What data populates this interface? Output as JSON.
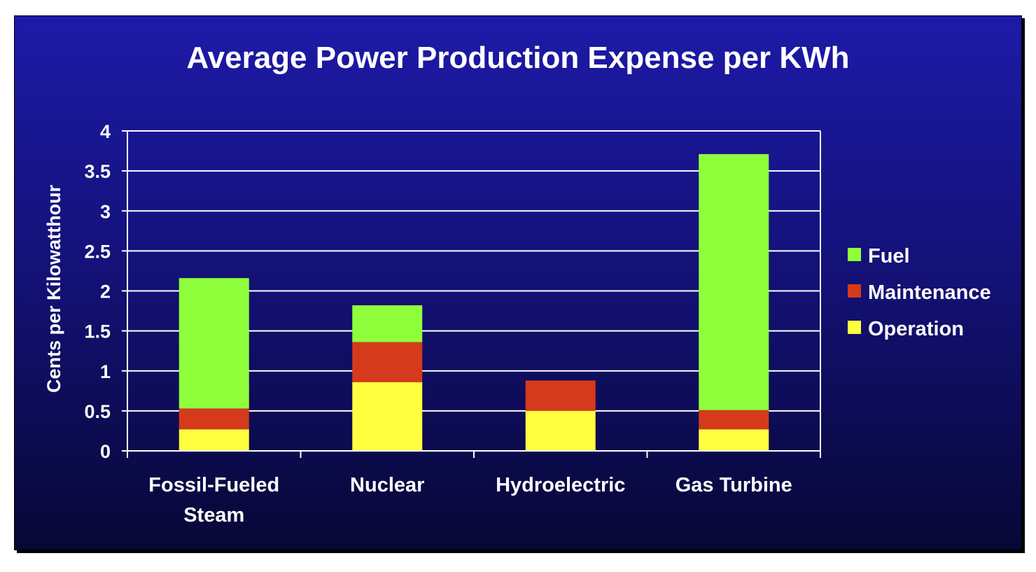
{
  "chart_data": {
    "type": "bar",
    "stacked": true,
    "title": "Average Power Production Expense per KWh",
    "xlabel": "",
    "ylabel": "Cents per Kilowatthour",
    "ylim": [
      0,
      4
    ],
    "yticks": [
      "0",
      "0.5",
      "1",
      "1.5",
      "2",
      "2.5",
      "3",
      "3.5",
      "4"
    ],
    "grid": true,
    "legend_position": "right",
    "categories": [
      [
        "Fossil-Fueled",
        "Steam"
      ],
      [
        "Nuclear"
      ],
      [
        "Hydroelectric"
      ],
      [
        "Gas Turbine"
      ]
    ],
    "series": [
      {
        "name": "Operation",
        "color": "#ffff40",
        "values": [
          0.27,
          0.86,
          0.5,
          0.27
        ]
      },
      {
        "name": "Maintenance",
        "color": "#d63a1c",
        "values": [
          0.26,
          0.5,
          0.38,
          0.24
        ]
      },
      {
        "name": "Fuel",
        "color": "#8fff3c",
        "values": [
          1.63,
          0.46,
          0.0,
          3.2
        ]
      }
    ],
    "legend_order": [
      "Fuel",
      "Maintenance",
      "Operation"
    ]
  }
}
